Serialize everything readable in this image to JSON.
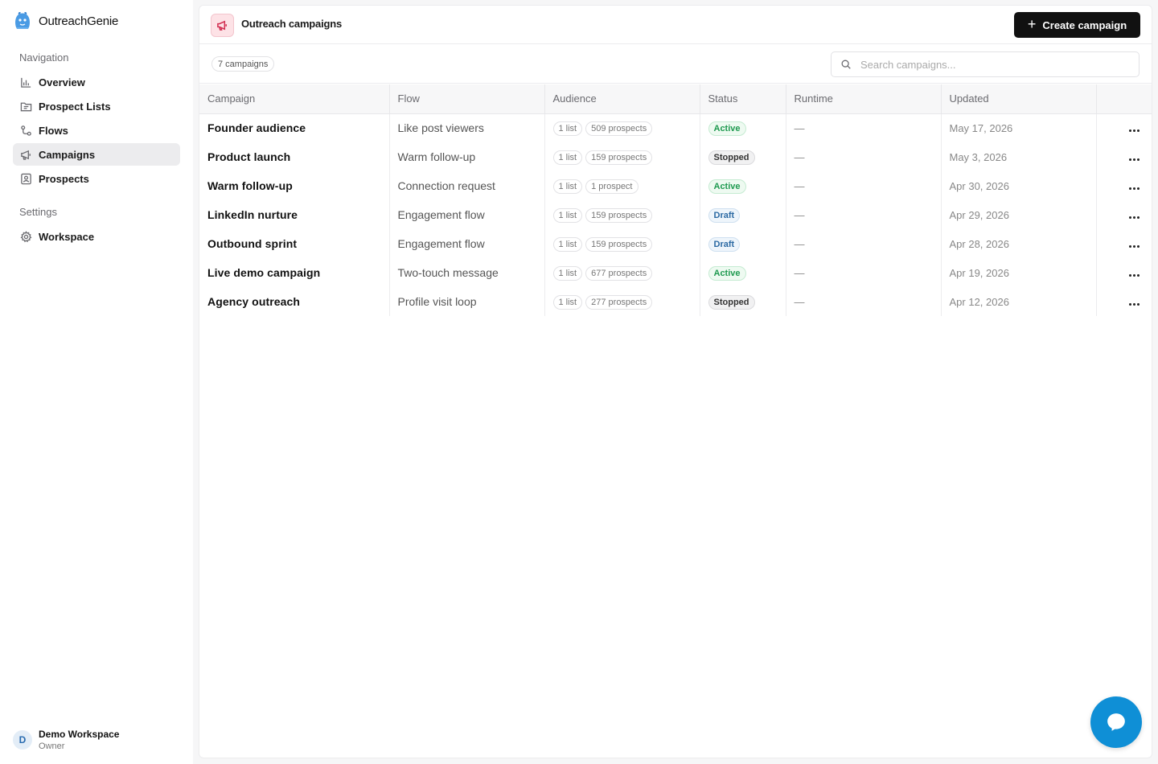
{
  "app": {
    "name": "OutreachGenie"
  },
  "sidebar": {
    "navigation_label": "Navigation",
    "items": [
      {
        "label": "Overview",
        "icon": "bar-chart-icon",
        "active": false
      },
      {
        "label": "Prospect Lists",
        "icon": "folder-list-icon",
        "active": false
      },
      {
        "label": "Flows",
        "icon": "flow-icon",
        "active": false
      },
      {
        "label": "Campaigns",
        "icon": "megaphone-icon",
        "active": true
      },
      {
        "label": "Prospects",
        "icon": "contact-icon",
        "active": false
      }
    ],
    "settings_label": "Settings",
    "settings_items": [
      {
        "label": "Workspace",
        "icon": "gear-icon"
      }
    ],
    "user": {
      "initial": "D",
      "name": "Demo Workspace",
      "role": "Owner"
    }
  },
  "header": {
    "title": "Outreach campaigns",
    "icon": "megaphone-icon",
    "create_button": "Create campaign"
  },
  "toolbar": {
    "count": "7 campaigns",
    "search_placeholder": "Search campaigns..."
  },
  "table": {
    "columns": [
      "Campaign",
      "Flow",
      "Audience",
      "Status",
      "Runtime",
      "Updated",
      ""
    ],
    "rows": [
      {
        "name": "Founder audience",
        "flow": "Like post viewers",
        "lists": "1 list",
        "prospects": "509 prospects",
        "status": "Active",
        "runtime": "—",
        "updated": "May 17, 2026"
      },
      {
        "name": "Product launch",
        "flow": "Warm follow-up",
        "lists": "1 list",
        "prospects": "159 prospects",
        "status": "Stopped",
        "runtime": "—",
        "updated": "May 3, 2026"
      },
      {
        "name": "Warm follow-up",
        "flow": "Connection request",
        "lists": "1 list",
        "prospects": "1 prospect",
        "status": "Active",
        "runtime": "—",
        "updated": "Apr 30, 2026"
      },
      {
        "name": "LinkedIn nurture",
        "flow": "Engagement flow",
        "lists": "1 list",
        "prospects": "159 prospects",
        "status": "Draft",
        "runtime": "—",
        "updated": "Apr 29, 2026"
      },
      {
        "name": "Outbound sprint",
        "flow": "Engagement flow",
        "lists": "1 list",
        "prospects": "159 prospects",
        "status": "Draft",
        "runtime": "—",
        "updated": "Apr 28, 2026"
      },
      {
        "name": "Live demo campaign",
        "flow": "Two-touch message",
        "lists": "1 list",
        "prospects": "677 prospects",
        "status": "Active",
        "runtime": "—",
        "updated": "Apr 19, 2026"
      },
      {
        "name": "Agency outreach",
        "flow": "Profile visit loop",
        "lists": "1 list",
        "prospects": "277 prospects",
        "status": "Stopped",
        "runtime": "—",
        "updated": "Apr 12, 2026"
      }
    ]
  },
  "colors": {
    "accent": "#111111",
    "chat": "#0f8fd6",
    "active": "#1f9a50",
    "draft": "#2c6aa3",
    "brand_icon": "#d22f52"
  }
}
